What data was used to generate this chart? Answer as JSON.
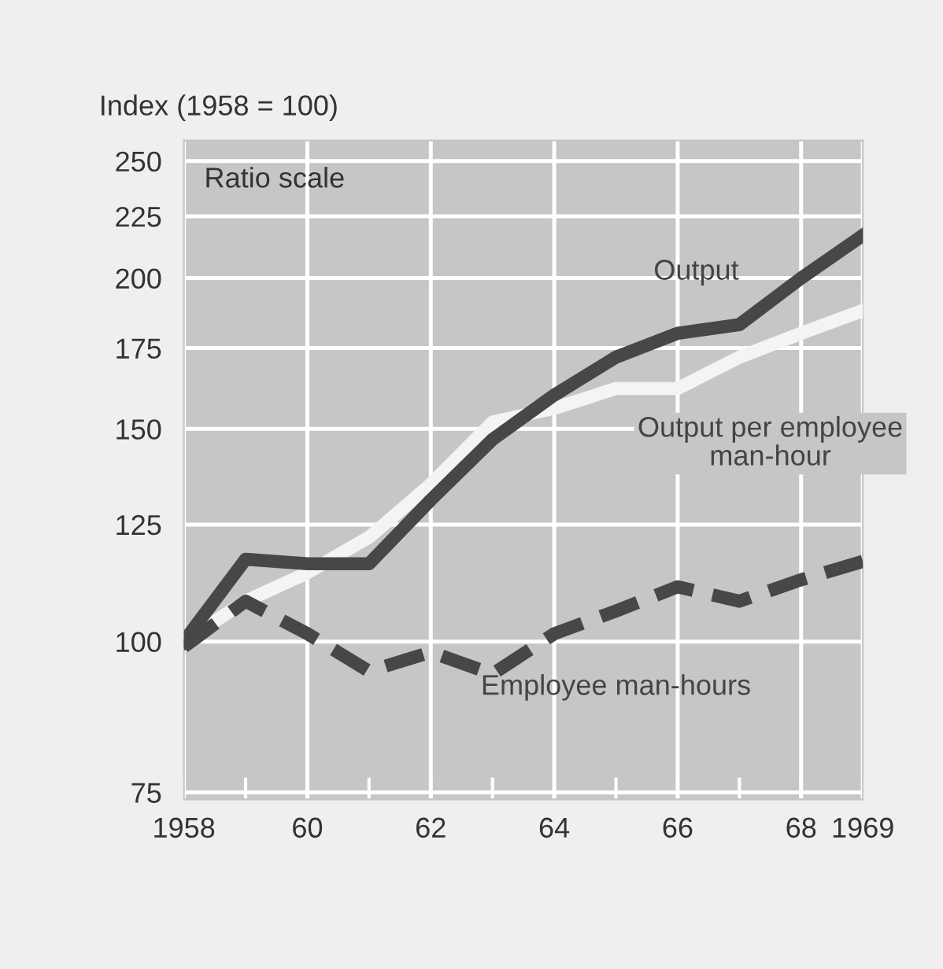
{
  "chart_data": {
    "type": "line",
    "ylabel": "Index (1958 = 100)",
    "log": "y",
    "grid": true,
    "legend": false,
    "marker": "none",
    "x": [
      1958,
      1959,
      1960,
      1961,
      1962,
      1963,
      1964,
      1965,
      1966,
      1967,
      1968,
      1969
    ],
    "xlim": [
      1958,
      1969
    ],
    "ylim": [
      74,
      260
    ],
    "xticks": [
      1958,
      {
        "value": 1959,
        "label": null
      },
      {
        "value": 1960,
        "label": "60"
      },
      {
        "value": 1961,
        "label": null
      },
      {
        "value": 1962,
        "label": "62"
      },
      {
        "value": 1963,
        "label": null
      },
      {
        "value": 1964,
        "label": "64"
      },
      {
        "value": 1965,
        "label": null
      },
      {
        "value": 1966,
        "label": "66"
      },
      {
        "value": 1967,
        "label": null
      },
      {
        "value": 1968,
        "label": "68"
      },
      1969
    ],
    "yticks": [
      75,
      100,
      125,
      150,
      175,
      200,
      225,
      250
    ],
    "annotations": [
      "Ratio scale"
    ],
    "series": [
      {
        "name": "Output",
        "color": "#474747",
        "line_style": "solid",
        "values": [
          100,
          117,
          116,
          116,
          131,
          147,
          160,
          172,
          180,
          183,
          200,
          217
        ]
      },
      {
        "name": "Output per employee man-hour",
        "color": "#f4f4f4",
        "line_style": "solid",
        "values": [
          100,
          108,
          114,
          122,
          135,
          152,
          156,
          162,
          162,
          172,
          180,
          188
        ]
      },
      {
        "name": "Employee man-hours",
        "color": "#474747",
        "line_style": "dashed",
        "values": [
          99,
          108,
          101.5,
          94.5,
          98,
          94,
          101.5,
          106,
          111,
          108,
          112.5,
          116.5
        ]
      }
    ]
  }
}
